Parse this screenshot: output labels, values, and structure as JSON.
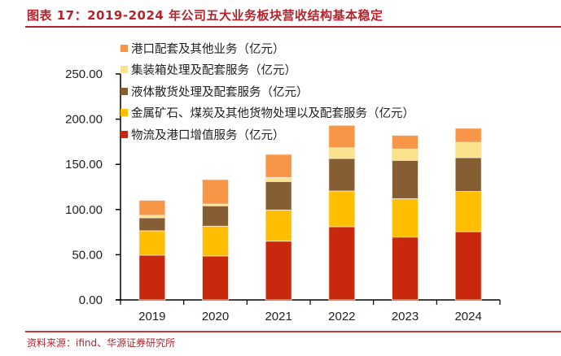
{
  "header": {
    "title": "图表 17：2019-2024 年公司五大业务板块营收结构基本稳定"
  },
  "footer": {
    "source": "资料来源：ifind、华源证券研究所"
  },
  "chart_data": {
    "type": "bar",
    "stacked": true,
    "title": "图表 17：2019-2024 年公司五大业务板块营收结构基本稳定",
    "xlabel": "",
    "ylabel": "",
    "categories": [
      "2019",
      "2020",
      "2021",
      "2022",
      "2023",
      "2024"
    ],
    "ylim": [
      0,
      250
    ],
    "yticks": [
      0,
      50,
      100,
      150,
      200,
      250
    ],
    "ytick_labels": [
      "0.00",
      "50.00",
      "100.00",
      "150.00",
      "200.00",
      "250.00"
    ],
    "grid": false,
    "legend_position": "top-left",
    "series": [
      {
        "name": "物流及港口增值服务（亿元）",
        "color": "#c8280c",
        "values": [
          49.5,
          48.6,
          65.0,
          81.0,
          69.5,
          75.5
        ]
      },
      {
        "name": "金属矿石、煤炭及其他货物处理以及配套服务（亿元）",
        "color": "#ffbe00",
        "values": [
          27.0,
          33.0,
          34.5,
          39.5,
          42.5,
          44.5
        ]
      },
      {
        "name": "液体散货处理及配套服务（亿元）",
        "color": "#855f33",
        "values": [
          14.4,
          22.5,
          31.5,
          36.0,
          42.4,
          37.4
        ]
      },
      {
        "name": "集装箱处理及配套服务（亿元）",
        "color": "#fbe38e",
        "values": [
          2.7,
          2.0,
          4.5,
          11.9,
          12.6,
          17.0
        ]
      },
      {
        "name": "港口配套及其他业务（亿元）",
        "color": "#f79646",
        "values": [
          16.5,
          27.0,
          25.5,
          24.7,
          15.0,
          15.5
        ]
      }
    ],
    "legend_order": [
      4,
      3,
      2,
      1,
      0
    ]
  }
}
